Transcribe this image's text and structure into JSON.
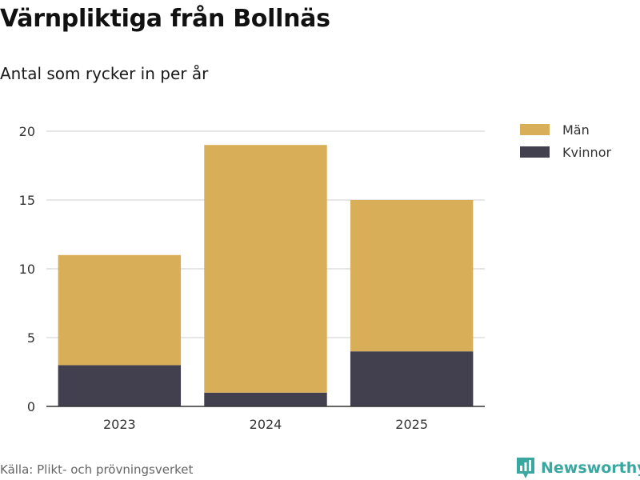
{
  "title": "Värnpliktiga från Bollnäs",
  "subtitle": "Antal som rycker in per år",
  "source": "Källa: Plikt- och prövningsverket",
  "brand": {
    "name": "Newsworthy",
    "icon": "newsworthy-logo-icon",
    "color": "#3aa8a1"
  },
  "chart_data": {
    "type": "bar",
    "stacked": true,
    "categories": [
      "2023",
      "2024",
      "2025"
    ],
    "series": [
      {
        "name": "Kvinnor",
        "values": [
          3,
          1,
          4
        ],
        "color": "#423f4f"
      },
      {
        "name": "Män",
        "values": [
          8,
          18,
          11
        ],
        "color": "#d9ae59"
      }
    ],
    "yticks": [
      0,
      5,
      10,
      15,
      20
    ],
    "ylim": [
      0,
      20
    ],
    "grid": true,
    "legend": {
      "position": "top-right",
      "items": [
        {
          "name": "Män",
          "color": "#d9ae59"
        },
        {
          "name": "Kvinnor",
          "color": "#423f4f"
        }
      ]
    }
  }
}
